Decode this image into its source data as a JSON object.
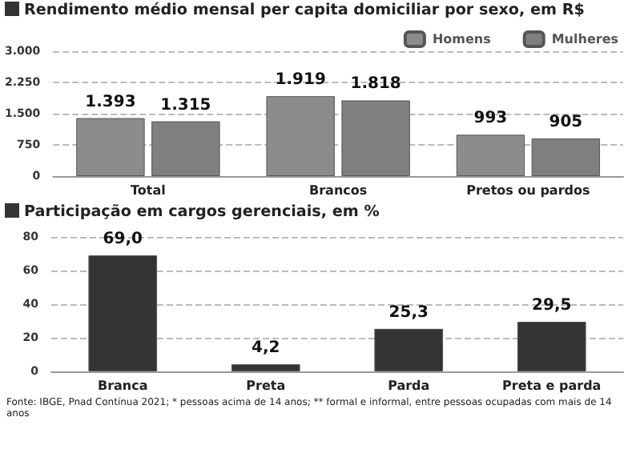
{
  "chart_data": [
    {
      "type": "bar",
      "title": "Rendimento médio mensal per capita domiciliar por sexo, em R$",
      "categories": [
        "Total",
        "Brancos",
        "Pretos ou pardos"
      ],
      "series": [
        {
          "name": "Homens",
          "color": "#8c8c8c",
          "values": [
            1393,
            1919,
            993
          ],
          "value_labels": [
            "1.393",
            "1.919",
            "993"
          ]
        },
        {
          "name": "Mulheres",
          "color": "#7f7f7f",
          "values": [
            1315,
            1818,
            905
          ],
          "value_labels": [
            "1.315",
            "1.818",
            "905"
          ]
        }
      ],
      "ylim": [
        0,
        3000
      ],
      "yticks": [
        0,
        {
          "value": 750,
          "label": "750"
        },
        {
          "value": 1500,
          "label": "1.500"
        },
        {
          "value": 2250,
          "label": "2.250"
        },
        {
          "value": 3000,
          "label": "3.000"
        }
      ],
      "grid": "y",
      "legend": "top right"
    },
    {
      "type": "bar",
      "title": "Participação em cargos gerenciais, em %",
      "categories": [
        "Branca",
        "Preta",
        "Parda",
        "Preta e parda"
      ],
      "values": [
        69.0,
        4.2,
        25.3,
        29.5
      ],
      "value_labels": [
        "69,0",
        "4,2",
        "25,3",
        "29,5"
      ],
      "color": "#333333",
      "ylim": [
        0,
        80
      ],
      "yticks": [
        0,
        20,
        40,
        60,
        80
      ],
      "grid": "y",
      "legend": false,
      "annotations": [
        "Fonte: IBGE, Pnad Contínua 2021; * pessoas acima de 14 anos; ** formal e informal, entre pessoas ocupadas com mais de 14 anos"
      ]
    }
  ]
}
